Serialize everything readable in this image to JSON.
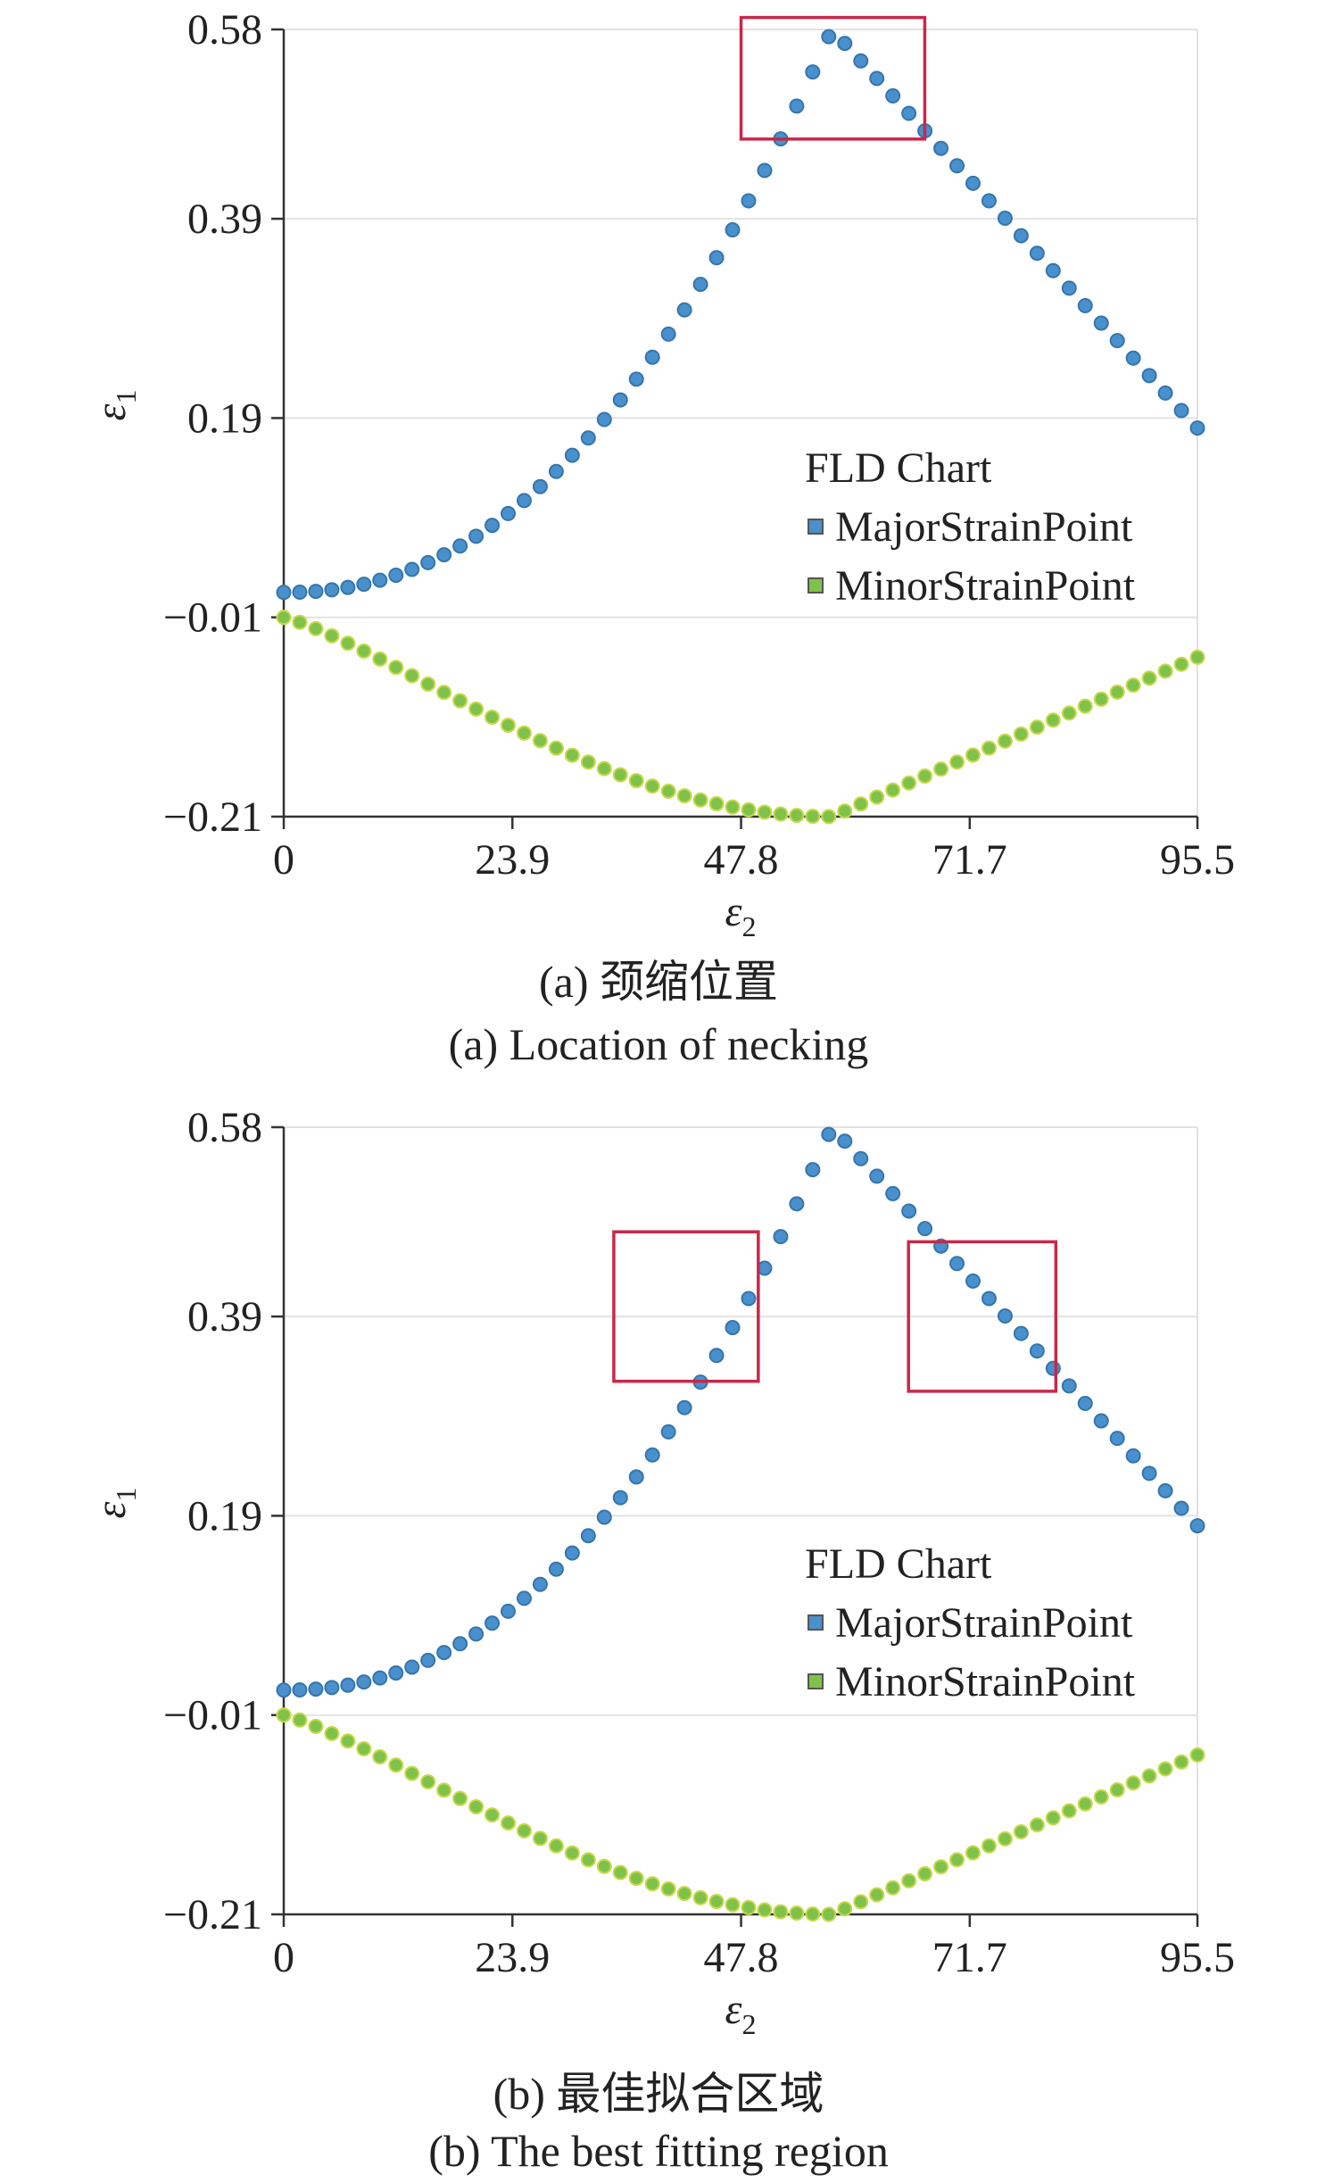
{
  "chart_data": [
    {
      "type": "scatter",
      "caption_zh": "(a) 颈缩位置",
      "caption_en": "(a) Location of necking",
      "xlabel_base": "ε",
      "xlabel_sub": "2",
      "ylabel_base": "ε",
      "ylabel_sub": "1",
      "xlim": [
        0,
        95.5
      ],
      "ylim": [
        -0.21,
        0.58
      ],
      "xticks": [
        "0",
        "23.9",
        "47.8",
        "71.7",
        "95.5"
      ],
      "yticks": [
        "0.58",
        "0.39",
        "0.19",
        "−0.01",
        "−0.21"
      ],
      "grid": true,
      "legend_title": "FLD Chart",
      "legend_position": "right",
      "series": [
        {
          "name": "MajorStrainPoint",
          "color": "#4a90cc",
          "peak": [
            57.3,
            0.58
          ],
          "start": [
            0,
            0.015
          ],
          "end": [
            95.5,
            0.18
          ],
          "shape": "power2.2 rise to peak, linear fall"
        },
        {
          "name": "MinorStrainPoint",
          "color": "#7fc24a",
          "trough": [
            57.3,
            -0.21
          ],
          "start": [
            0,
            -0.01
          ],
          "end": [
            95.5,
            -0.05
          ],
          "shape": "smooth fall to trough, linear rise"
        }
      ],
      "highlight_regions": [
        {
          "x": [
            47.8,
            67.0
          ],
          "y": [
            0.47,
            0.592
          ]
        }
      ]
    },
    {
      "type": "scatter",
      "caption_zh": "(b) 最佳拟合区域",
      "caption_en": "(b) The best fitting region",
      "xlabel_base": "ε",
      "xlabel_sub": "2",
      "ylabel_base": "ε",
      "ylabel_sub": "1",
      "xlim": [
        0,
        95.5
      ],
      "ylim": [
        -0.21,
        0.58
      ],
      "xticks": [
        "0",
        "23.9",
        "47.8",
        "71.7",
        "95.5"
      ],
      "yticks": [
        "0.58",
        "0.39",
        "0.19",
        "−0.01",
        "−0.21"
      ],
      "grid": true,
      "legend_title": "FLD Chart",
      "legend_position": "right",
      "series": [
        {
          "name": "MajorStrainPoint",
          "color": "#4a90cc",
          "peak": [
            57.3,
            0.58
          ],
          "start": [
            0,
            0.015
          ],
          "end": [
            95.5,
            0.18
          ],
          "shape": "power2.2 rise to peak, linear fall"
        },
        {
          "name": "MinorStrainPoint",
          "color": "#7fc24a",
          "trough": [
            57.3,
            -0.21
          ],
          "start": [
            0,
            -0.01
          ],
          "end": [
            95.5,
            -0.05
          ],
          "shape": "smooth fall to trough, linear rise"
        }
      ],
      "highlight_regions": [
        {
          "x": [
            34.5,
            49.6
          ],
          "y": [
            0.325,
            0.475
          ]
        },
        {
          "x": [
            65.3,
            80.7
          ],
          "y": [
            0.315,
            0.465
          ]
        }
      ]
    }
  ]
}
